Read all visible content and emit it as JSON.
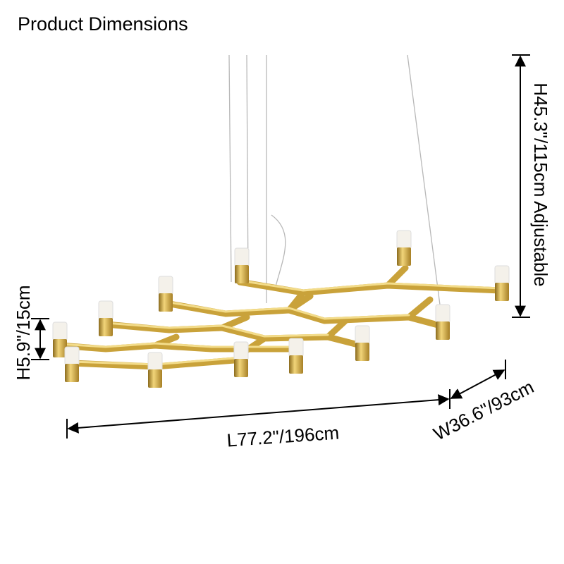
{
  "title": "Product Dimensions",
  "dimensions": {
    "height_adjustable": "H45.3\"/115cm Adjustable",
    "height": "H5.9\"/15cm",
    "length": "L77.2\"/196cm",
    "width": "W36.6\"/93cm"
  }
}
